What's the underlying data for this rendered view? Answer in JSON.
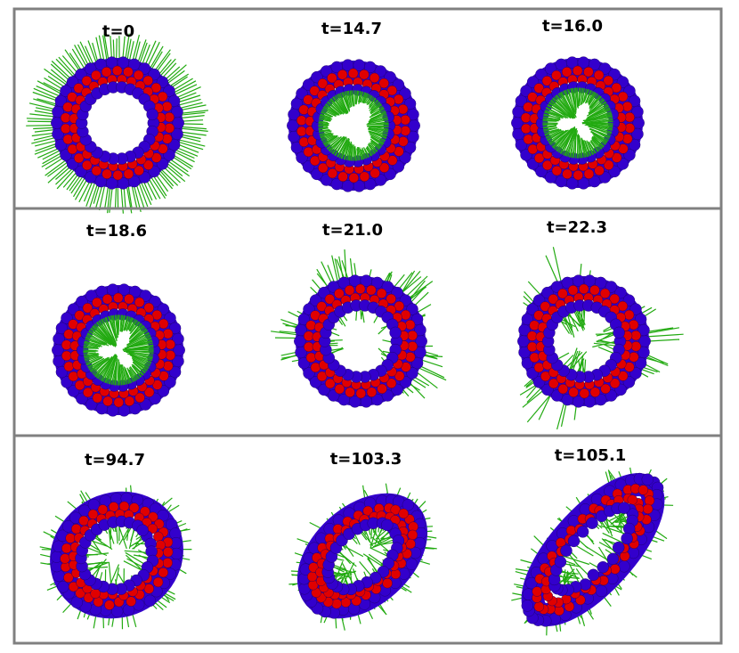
{
  "colors": {
    "border": "#808080",
    "bead_outer": "#3300cc",
    "bead_inner": "#e00000",
    "tail": "#22aa11"
  },
  "panels": [
    {
      "label": "t=0",
      "shape": "ring-outward-tails"
    },
    {
      "label": "t=14.7",
      "shape": "ring-inward-tails-rounded"
    },
    {
      "label": "t=16.0",
      "shape": "ring-inward-tails-triangular"
    },
    {
      "label": "t=18.6",
      "shape": "ring-inward-tails-triangular"
    },
    {
      "label": "t=21.0",
      "shape": "ring-three-outward-tufts"
    },
    {
      "label": "t=22.3",
      "shape": "ring-three-tufts-mixed"
    },
    {
      "label": "t=94.7",
      "shape": "tilted-ring-scattered-tails"
    },
    {
      "label": "t=103.3",
      "shape": "tilted-oval-scattered-tails"
    },
    {
      "label": "t=105.1",
      "shape": "elongated-oval-scattered-tails"
    }
  ]
}
